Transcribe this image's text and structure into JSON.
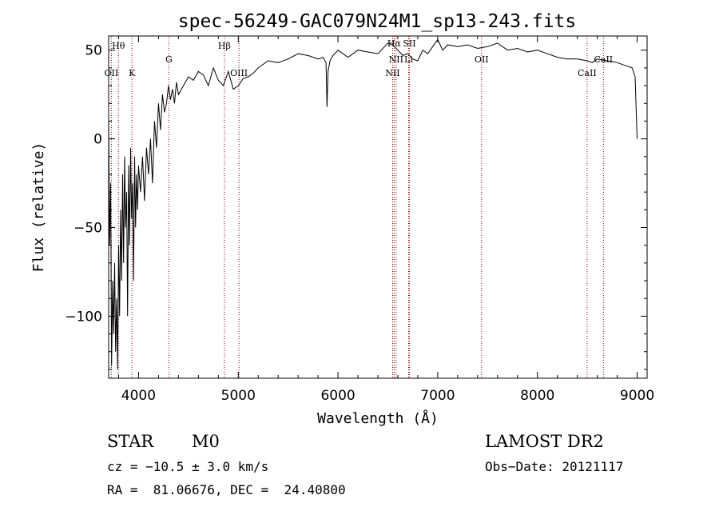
{
  "chart_data": {
    "type": "line",
    "title": "spec-56249-GAC079N24M1_sp13-243.fits",
    "xlabel": "Wavelength (Å)",
    "ylabel": "Flux (relative)",
    "xlim": [
      3700,
      9100
    ],
    "ylim": [
      -135,
      58
    ],
    "xticks": [
      4000,
      5000,
      6000,
      7000,
      8000,
      9000
    ],
    "yticks": [
      50,
      0,
      -50,
      -100
    ],
    "grid": false,
    "line_color": "#000000",
    "marker_color": "#8b0000",
    "series": [
      {
        "x": [
          3700,
          3710,
          3720,
          3730,
          3740,
          3750,
          3760,
          3770,
          3780,
          3790,
          3800,
          3810,
          3820,
          3830,
          3840,
          3850,
          3860,
          3870,
          3880,
          3890,
          3900,
          3910,
          3920,
          3930,
          3940,
          3950,
          3960,
          3970,
          3980,
          3990,
          4000,
          4020,
          4040,
          4060,
          4080,
          4100,
          4120,
          4140,
          4160,
          4180,
          4200,
          4220,
          4240,
          4260,
          4280,
          4300,
          4320,
          4340,
          4360,
          4380,
          4400,
          4450,
          4500,
          4550,
          4600,
          4650,
          4700,
          4750,
          4800,
          4850,
          4900,
          4950,
          5000,
          5050,
          5100,
          5150,
          5200,
          5300,
          5400,
          5500,
          5600,
          5700,
          5800,
          5850,
          5880,
          5890,
          5900,
          5920,
          5950,
          6000,
          6100,
          6200,
          6300,
          6400,
          6500,
          6550,
          6600,
          6650,
          6700,
          6750,
          6800,
          6850,
          6900,
          6950,
          7000,
          7050,
          7100,
          7200,
          7300,
          7400,
          7500,
          7600,
          7700,
          7800,
          7900,
          8000,
          8100,
          8200,
          8300,
          8400,
          8500,
          8550,
          8600,
          8700,
          8800,
          8900,
          8950,
          8980,
          9000
        ],
        "values": [
          10,
          -60,
          -25,
          -128,
          -80,
          -110,
          -70,
          -120,
          -90,
          -130,
          -60,
          -100,
          -40,
          -80,
          -20,
          -70,
          -10,
          -50,
          -30,
          -100,
          -15,
          -60,
          -5,
          -45,
          -25,
          -80,
          -10,
          -50,
          -20,
          -40,
          -15,
          -30,
          -10,
          -35,
          -5,
          -20,
          0,
          -25,
          10,
          -5,
          20,
          5,
          25,
          15,
          20,
          30,
          22,
          28,
          20,
          32,
          25,
          30,
          35,
          33,
          38,
          36,
          30,
          40,
          33,
          30,
          38,
          28,
          30,
          34,
          35,
          37,
          40,
          44,
          43,
          45,
          48,
          47,
          45,
          46,
          43,
          18,
          38,
          44,
          47,
          50,
          46,
          50,
          49,
          48,
          54,
          53,
          50,
          47,
          48,
          45,
          44,
          50,
          48,
          52,
          56,
          50,
          53,
          52,
          53,
          51,
          52,
          54,
          50,
          51,
          49,
          50,
          48,
          46,
          45,
          45,
          44,
          43,
          45,
          44,
          43,
          41,
          40,
          35,
          0
        ]
      }
    ],
    "lines": [
      {
        "label": "OII",
        "wavelength": 3727
      },
      {
        "label": "Hθ",
        "wavelength": 3798
      },
      {
        "label": "K",
        "wavelength": 3934
      },
      {
        "label": "G",
        "wavelength": 4304
      },
      {
        "label": "Hβ",
        "wavelength": 4861
      },
      {
        "label": "OIII",
        "wavelength": 5007
      },
      {
        "label": "NII",
        "wavelength": 6548
      },
      {
        "label": "Hα",
        "wavelength": 6563
      },
      {
        "label": "NII",
        "wavelength": 6583
      },
      {
        "label": "SII",
        "wavelength": 6716
      },
      {
        "label": "Li",
        "wavelength": 6708
      },
      {
        "label": "OII",
        "wavelength": 7440
      },
      {
        "label": "CaII",
        "wavelength": 8498
      },
      {
        "label": "CaII",
        "wavelength": 8662
      }
    ]
  },
  "info": {
    "object_class": "STAR",
    "subclass": "M0",
    "redshift": "cz = −10.5 ± 3.0 km/s",
    "coords": "RA =  81.06676, DEC =  24.40800",
    "survey": "LAMOST DR2",
    "obs_date": "Obs−Date: 20121117"
  }
}
